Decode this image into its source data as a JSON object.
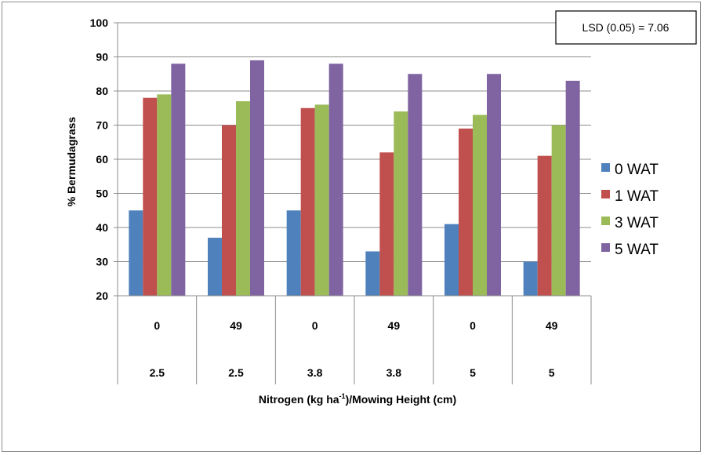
{
  "chart_data": {
    "type": "bar",
    "title": "",
    "ylabel": "% Bermudagrass",
    "xlabel_parts": [
      "Nitrogen (kg ha",
      "-1",
      ")/Mowing Height (cm)"
    ],
    "ylim": [
      20,
      100
    ],
    "yticks": [
      20,
      30,
      40,
      50,
      60,
      70,
      80,
      90,
      100
    ],
    "grid": true,
    "legend_position": "right",
    "categories_level1": [
      "0",
      "49",
      "0",
      "49",
      "0",
      "49"
    ],
    "categories_level2": [
      "2.5",
      "2.5",
      "3.8",
      "3.8",
      "5",
      "5"
    ],
    "series": [
      {
        "name": "0 WAT",
        "color": "#4f81bd",
        "values": [
          45,
          37,
          45,
          33,
          41,
          30
        ]
      },
      {
        "name": "1 WAT",
        "color": "#c0504d",
        "values": [
          78,
          70,
          75,
          62,
          69,
          61
        ]
      },
      {
        "name": "3 WAT",
        "color": "#9bbb59",
        "values": [
          79,
          77,
          76,
          74,
          73,
          70
        ]
      },
      {
        "name": "5 WAT",
        "color": "#8064a2",
        "values": [
          88,
          89,
          88,
          85,
          85,
          83
        ]
      }
    ],
    "annotation": "LSD (0.05) = 7.06"
  }
}
